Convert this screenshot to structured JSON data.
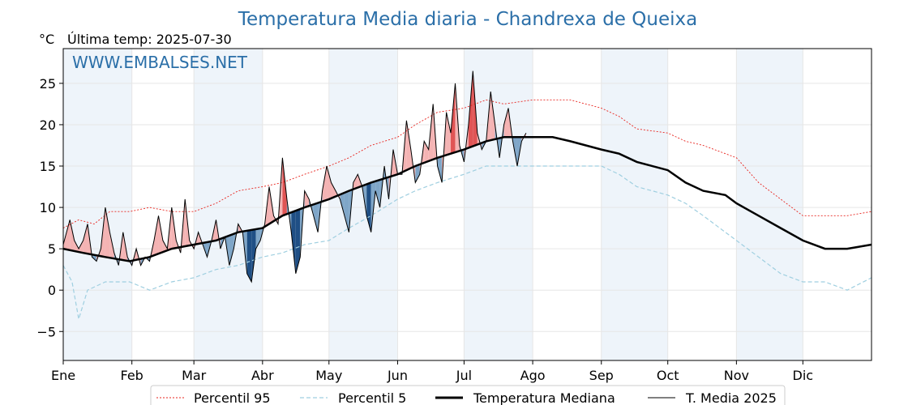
{
  "chart_data": {
    "type": "line",
    "title": "Temperatura Media diaria - Chandrexa de Queixa",
    "unit_label": "°C",
    "last_temp_label": "Última temp: 2025-07-30",
    "watermark": "WWW.EMBALSES.NET",
    "ylim": [
      -8.5,
      29.2
    ],
    "y_ticks": [
      -5,
      0,
      5,
      10,
      15,
      20,
      25
    ],
    "y_tick_labels": [
      "−5",
      "0",
      "5",
      "10",
      "15",
      "20",
      "25"
    ],
    "months": [
      "Ene",
      "Feb",
      "Mar",
      "Abr",
      "May",
      "Jun",
      "Jul",
      "Ago",
      "Sep",
      "Oct",
      "Nov",
      "Dic"
    ],
    "month_start_days": [
      1,
      32,
      60,
      91,
      121,
      152,
      182,
      213,
      244,
      274,
      305,
      335
    ],
    "x_range": [
      1,
      366
    ],
    "grid": true,
    "legend_position": "bottom",
    "colors": {
      "p95": "#e8251f",
      "p5": "#9fcfe0",
      "median": "#000000",
      "current": "#000000",
      "warm_fill": "#f4b3b3",
      "warm_fill_dark": "#e05555",
      "cold_fill": "#7fa6c8",
      "cold_fill_dark": "#1f4f85",
      "band": "#eef4fa",
      "title": "#2b6fa8",
      "watermark": "#2b6fa8"
    },
    "series": [
      {
        "name": "Percentil 95",
        "style": "dotted",
        "points": [
          [
            1,
            7.5
          ],
          [
            8,
            8.5
          ],
          [
            15,
            8
          ],
          [
            22,
            9.5
          ],
          [
            31,
            9.5
          ],
          [
            40,
            10
          ],
          [
            50,
            9.5
          ],
          [
            60,
            9.5
          ],
          [
            70,
            10.5
          ],
          [
            80,
            12
          ],
          [
            91,
            12.5
          ],
          [
            100,
            13
          ],
          [
            110,
            14
          ],
          [
            121,
            15
          ],
          [
            130,
            16
          ],
          [
            140,
            17.5
          ],
          [
            152,
            18.5
          ],
          [
            160,
            20
          ],
          [
            170,
            21.5
          ],
          [
            182,
            22
          ],
          [
            192,
            23
          ],
          [
            200,
            22.5
          ],
          [
            213,
            23
          ],
          [
            222,
            23
          ],
          [
            230,
            23
          ],
          [
            244,
            22
          ],
          [
            252,
            21
          ],
          [
            260,
            19.5
          ],
          [
            274,
            19
          ],
          [
            282,
            18
          ],
          [
            290,
            17.5
          ],
          [
            300,
            16.5
          ],
          [
            305,
            16
          ],
          [
            315,
            13
          ],
          [
            325,
            11
          ],
          [
            335,
            9
          ],
          [
            345,
            9
          ],
          [
            355,
            9
          ],
          [
            366,
            9.5
          ]
        ]
      },
      {
        "name": "Percentil 5",
        "style": "dashed",
        "points": [
          [
            1,
            3
          ],
          [
            5,
            1
          ],
          [
            8,
            -3.5
          ],
          [
            12,
            0
          ],
          [
            20,
            1
          ],
          [
            31,
            1
          ],
          [
            40,
            0
          ],
          [
            50,
            1
          ],
          [
            60,
            1.5
          ],
          [
            70,
            2.5
          ],
          [
            80,
            3
          ],
          [
            91,
            4
          ],
          [
            100,
            4.5
          ],
          [
            110,
            5.5
          ],
          [
            121,
            6
          ],
          [
            130,
            7.5
          ],
          [
            140,
            9
          ],
          [
            152,
            11
          ],
          [
            160,
            12
          ],
          [
            170,
            13
          ],
          [
            182,
            14
          ],
          [
            192,
            15
          ],
          [
            200,
            15
          ],
          [
            213,
            15
          ],
          [
            222,
            15
          ],
          [
            230,
            15
          ],
          [
            244,
            15
          ],
          [
            252,
            14
          ],
          [
            260,
            12.5
          ],
          [
            274,
            11.5
          ],
          [
            282,
            10.5
          ],
          [
            290,
            9
          ],
          [
            300,
            7
          ],
          [
            305,
            6
          ],
          [
            315,
            4
          ],
          [
            325,
            2
          ],
          [
            335,
            1
          ],
          [
            345,
            1
          ],
          [
            355,
            0
          ],
          [
            366,
            1.5
          ]
        ]
      },
      {
        "name": "Temperatura Mediana",
        "style": "thick",
        "points": [
          [
            1,
            5
          ],
          [
            10,
            4.5
          ],
          [
            20,
            4
          ],
          [
            31,
            3.5
          ],
          [
            40,
            4
          ],
          [
            50,
            5
          ],
          [
            60,
            5.5
          ],
          [
            70,
            6
          ],
          [
            80,
            7
          ],
          [
            91,
            7.5
          ],
          [
            100,
            9
          ],
          [
            110,
            10
          ],
          [
            121,
            11
          ],
          [
            130,
            12
          ],
          [
            140,
            13
          ],
          [
            152,
            14
          ],
          [
            160,
            15
          ],
          [
            170,
            16
          ],
          [
            182,
            17
          ],
          [
            192,
            18
          ],
          [
            200,
            18.5
          ],
          [
            213,
            18.5
          ],
          [
            222,
            18.5
          ],
          [
            230,
            18
          ],
          [
            244,
            17
          ],
          [
            252,
            16.5
          ],
          [
            260,
            15.5
          ],
          [
            274,
            14.5
          ],
          [
            282,
            13
          ],
          [
            290,
            12
          ],
          [
            300,
            11.5
          ],
          [
            305,
            10.5
          ],
          [
            315,
            9
          ],
          [
            325,
            7.5
          ],
          [
            335,
            6
          ],
          [
            345,
            5
          ],
          [
            355,
            5
          ],
          [
            366,
            5.5
          ]
        ]
      },
      {
        "name": "T. Media 2025",
        "style": "thin",
        "points": [
          [
            1,
            5.5
          ],
          [
            4,
            8.5
          ],
          [
            6,
            6
          ],
          [
            8,
            5
          ],
          [
            10,
            6
          ],
          [
            12,
            8
          ],
          [
            14,
            4
          ],
          [
            16,
            3.5
          ],
          [
            18,
            5
          ],
          [
            20,
            10
          ],
          [
            22,
            7
          ],
          [
            24,
            4.5
          ],
          [
            26,
            3
          ],
          [
            28,
            7
          ],
          [
            30,
            4
          ],
          [
            32,
            3
          ],
          [
            34,
            5
          ],
          [
            36,
            3
          ],
          [
            38,
            4
          ],
          [
            40,
            3.5
          ],
          [
            42,
            6
          ],
          [
            44,
            9
          ],
          [
            46,
            6
          ],
          [
            48,
            5
          ],
          [
            50,
            10
          ],
          [
            52,
            6
          ],
          [
            54,
            4.5
          ],
          [
            56,
            11
          ],
          [
            58,
            6
          ],
          [
            60,
            5
          ],
          [
            62,
            7
          ],
          [
            64,
            5.5
          ],
          [
            66,
            4
          ],
          [
            68,
            6
          ],
          [
            70,
            8.5
          ],
          [
            72,
            5
          ],
          [
            74,
            6.5
          ],
          [
            76,
            3
          ],
          [
            78,
            5
          ],
          [
            80,
            8
          ],
          [
            82,
            7
          ],
          [
            84,
            2
          ],
          [
            86,
            1
          ],
          [
            88,
            5
          ],
          [
            90,
            6
          ],
          [
            92,
            8
          ],
          [
            94,
            12.5
          ],
          [
            96,
            9
          ],
          [
            98,
            8
          ],
          [
            100,
            16
          ],
          [
            102,
            11
          ],
          [
            104,
            7
          ],
          [
            106,
            2
          ],
          [
            108,
            4
          ],
          [
            110,
            12
          ],
          [
            112,
            11
          ],
          [
            114,
            9
          ],
          [
            116,
            7
          ],
          [
            118,
            12
          ],
          [
            120,
            15
          ],
          [
            122,
            13
          ],
          [
            124,
            12
          ],
          [
            126,
            11
          ],
          [
            128,
            9
          ],
          [
            130,
            7
          ],
          [
            132,
            13
          ],
          [
            134,
            14
          ],
          [
            136,
            12.5
          ],
          [
            138,
            9
          ],
          [
            140,
            7
          ],
          [
            142,
            12
          ],
          [
            144,
            10
          ],
          [
            146,
            15
          ],
          [
            148,
            11
          ],
          [
            150,
            17
          ],
          [
            152,
            14
          ],
          [
            154,
            14
          ],
          [
            156,
            20.5
          ],
          [
            158,
            17
          ],
          [
            160,
            13
          ],
          [
            162,
            14
          ],
          [
            164,
            18
          ],
          [
            166,
            17
          ],
          [
            168,
            22.5
          ],
          [
            170,
            15
          ],
          [
            172,
            13
          ],
          [
            174,
            21.5
          ],
          [
            176,
            19
          ],
          [
            178,
            25
          ],
          [
            180,
            17.5
          ],
          [
            182,
            15.5
          ],
          [
            184,
            20
          ],
          [
            186,
            26.5
          ],
          [
            188,
            19
          ],
          [
            190,
            17
          ],
          [
            192,
            18
          ],
          [
            194,
            24
          ],
          [
            196,
            20
          ],
          [
            198,
            16
          ],
          [
            200,
            20
          ],
          [
            202,
            22
          ],
          [
            204,
            18
          ],
          [
            206,
            15
          ],
          [
            208,
            18
          ],
          [
            210,
            19
          ]
        ]
      }
    ]
  },
  "legend": {
    "p95": "Percentil 95",
    "p5": "Percentil 5",
    "median": "Temperatura Mediana",
    "current": "T. Media 2025"
  }
}
